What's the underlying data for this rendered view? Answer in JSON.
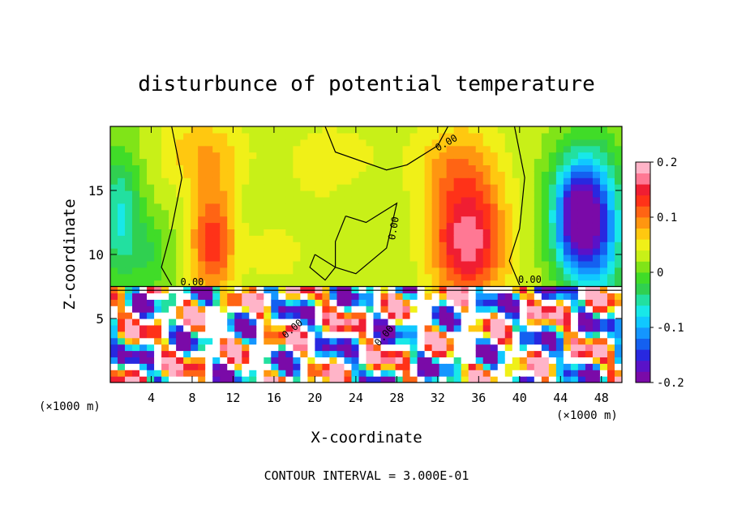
{
  "chart_data": {
    "type": "heatmap",
    "title": "disturbunce of potential temperature",
    "xlabel": "X-coordinate",
    "ylabel": "Z-coordinate",
    "x_unit_left": "(×1000 m)",
    "x_unit_right": "(×1000 m)",
    "xlim": [
      0,
      50
    ],
    "ylim": [
      0,
      20
    ],
    "x_ticks": [
      4,
      8,
      12,
      16,
      20,
      24,
      28,
      32,
      36,
      40,
      44,
      48
    ],
    "y_ticks": [
      5,
      10,
      15
    ],
    "colorbar": {
      "range": [
        -0.2,
        0.2
      ],
      "tick_values": [
        0.2,
        0.1,
        0,
        -0.1,
        -0.2
      ],
      "tick_labels": [
        "0.2",
        "0.1",
        "0",
        "-0.1",
        "-0.2"
      ],
      "colors": [
        "#7a0aa8",
        "#5a12c8",
        "#2828e0",
        "#1460f0",
        "#1496ff",
        "#10c8ff",
        "#18e8e8",
        "#22e0a0",
        "#30d050",
        "#40dc28",
        "#80e418",
        "#c8f018",
        "#f0f018",
        "#ffc810",
        "#ff9610",
        "#ff6414",
        "#ff3218",
        "#f01e32",
        "#ff7894",
        "#ffb4c8"
      ]
    },
    "contour_labels": [
      "0.00",
      "0.00",
      "0.00",
      "0.00",
      "0.00",
      "0.00"
    ],
    "contour_interval_text": "CONTOUR INTERVAL = 3.000E-01",
    "interface_height": 7.5
  }
}
